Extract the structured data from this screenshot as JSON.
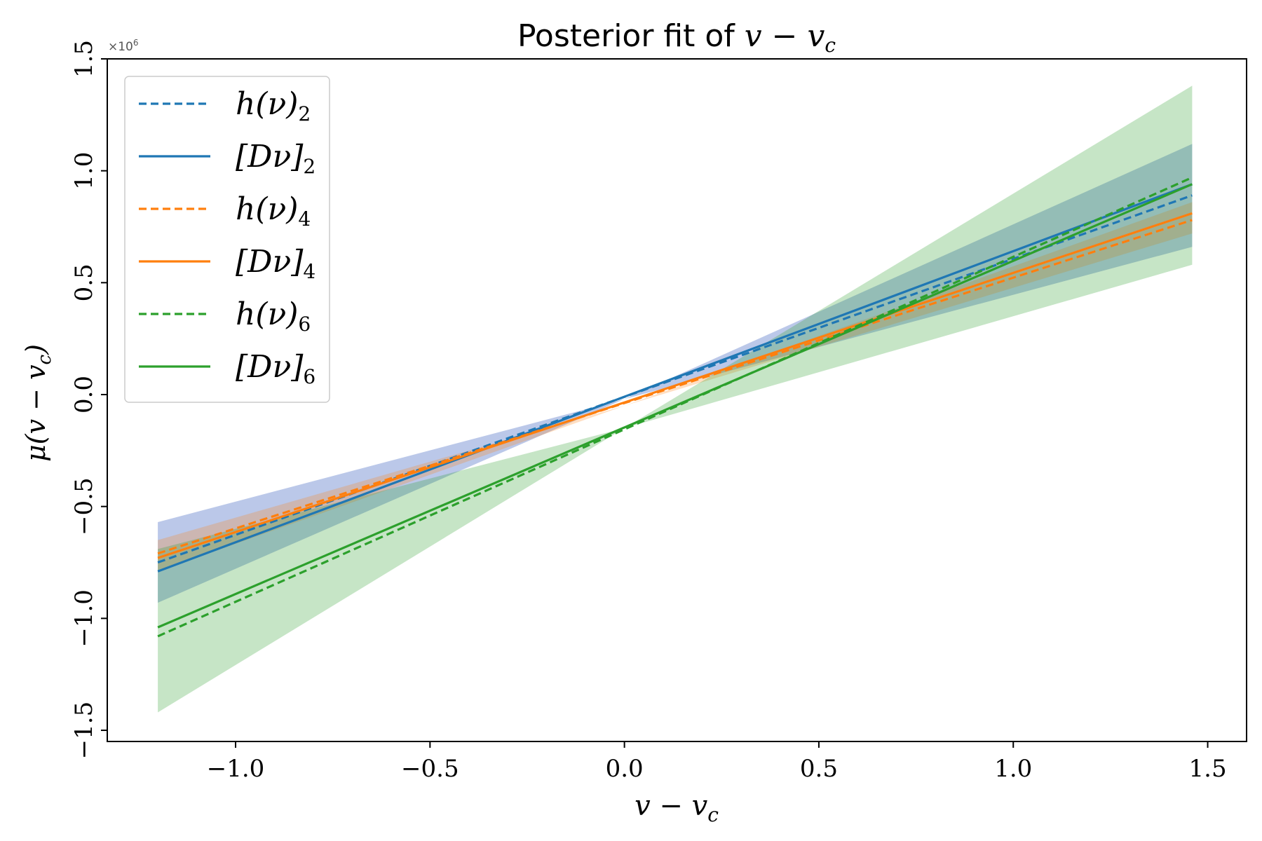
{
  "chart_data": {
    "type": "line",
    "title_prefix": "Posterior fit of ",
    "title_math": "v − v",
    "title_math_sub": "c",
    "xlabel": "v − v",
    "xlabel_sub": "c",
    "ylabel": "μ(v − v",
    "ylabel_sub": "c",
    "ylabel_close": ")",
    "y_multiplier": "×10",
    "y_multiplier_exp": "6",
    "xlim": [
      -1.33,
      1.6
    ],
    "ylim": [
      -1.55,
      1.5
    ],
    "xticks": [
      -1.0,
      -0.5,
      0.0,
      0.5,
      1.0,
      1.5
    ],
    "xtick_labels": [
      "−1.0",
      "−0.5",
      "0.0",
      "0.5",
      "1.0",
      "1.5"
    ],
    "yticks": [
      -1.5,
      -1.0,
      -0.5,
      0.0,
      0.5,
      1.0,
      1.5
    ],
    "ytick_labels": [
      "−1.5",
      "−1.0",
      "−0.5",
      "0.0",
      "0.5",
      "1.0",
      "1.5"
    ],
    "grid": false,
    "legend_position": "upper-left",
    "colors": {
      "blue": "#1f77b4",
      "orange": "#ff7f0e",
      "green": "#2ca02c"
    },
    "bands": [
      {
        "name": "band-2",
        "color": "#4c6fc4",
        "opacity": 0.38,
        "x": [
          -1.2,
          0.0,
          1.46
        ],
        "lower": [
          -0.93,
          -0.02,
          0.66
        ],
        "upper": [
          -0.57,
          -0.02,
          1.12
        ]
      },
      {
        "name": "band-4",
        "color": "#ff7f0e",
        "opacity": 0.25,
        "x": [
          -1.2,
          0.0,
          1.46
        ],
        "lower": [
          -0.79,
          -0.05,
          0.72
        ],
        "upper": [
          -0.65,
          -0.05,
          0.86
        ]
      },
      {
        "name": "band-6",
        "color": "#2ca02c",
        "opacity": 0.27,
        "x": [
          -1.2,
          0.0,
          1.46
        ],
        "lower": [
          -1.42,
          -0.15,
          0.58
        ],
        "upper": [
          -0.69,
          -0.15,
          1.38
        ]
      }
    ],
    "series": [
      {
        "name": "h(ν)",
        "sub": "2",
        "prefix": "h(ν)",
        "color": "#1f77b4",
        "dash": true,
        "x": [
          -1.2,
          1.46
        ],
        "y": [
          -0.75,
          0.89
        ]
      },
      {
        "name": "[Dν]",
        "sub": "2",
        "prefix": "[Dν]",
        "color": "#1f77b4",
        "dash": false,
        "x": [
          -1.2,
          1.46
        ],
        "y": [
          -0.79,
          0.94
        ]
      },
      {
        "name": "h(ν)",
        "sub": "4",
        "prefix": "h(ν)",
        "color": "#ff7f0e",
        "dash": true,
        "x": [
          -1.2,
          1.46
        ],
        "y": [
          -0.71,
          0.78
        ]
      },
      {
        "name": "[Dν]",
        "sub": "4",
        "prefix": "[Dν]",
        "color": "#ff7f0e",
        "dash": false,
        "x": [
          -1.2,
          1.46
        ],
        "y": [
          -0.73,
          0.81
        ]
      },
      {
        "name": "h(ν)",
        "sub": "6",
        "prefix": "h(ν)",
        "color": "#2ca02c",
        "dash": true,
        "x": [
          -1.2,
          1.46
        ],
        "y": [
          -1.08,
          0.97
        ]
      },
      {
        "name": "[Dν]",
        "sub": "6",
        "prefix": "[Dν]",
        "color": "#2ca02c",
        "dash": false,
        "x": [
          -1.2,
          1.46
        ],
        "y": [
          -1.04,
          0.94
        ]
      }
    ]
  }
}
